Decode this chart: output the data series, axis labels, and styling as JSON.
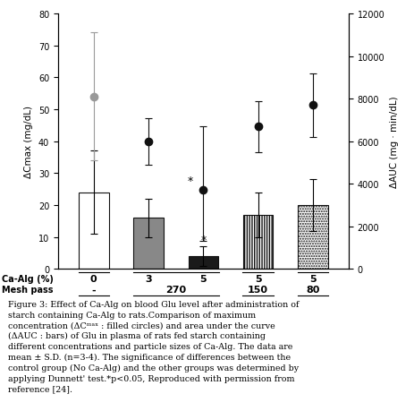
{
  "bar_positions": [
    1,
    2,
    3,
    4,
    5
  ],
  "bar_heights": [
    24,
    16,
    4,
    17,
    20
  ],
  "bar_errors": [
    13,
    6,
    3,
    7,
    8
  ],
  "bar_colors": [
    "white",
    "#888888",
    "#1a1a1a",
    "white",
    "white"
  ],
  "bar_patterns": [
    "",
    "",
    "",
    "||||||",
    "......"
  ],
  "dot_values": [
    8100,
    6000,
    3700,
    6700,
    7700
  ],
  "dot_errors_upper": [
    3000,
    1100,
    3000,
    1200,
    1500
  ],
  "dot_errors_lower": [
    3000,
    1100,
    2400,
    1200,
    1500
  ],
  "left_ylabel": "ΔCmax (mg/dL)",
  "right_ylabel": "ΔAUC (mg · min/dL)",
  "left_ylim": [
    0,
    80
  ],
  "right_ylim": [
    0,
    12000
  ],
  "left_yticks": [
    0,
    10,
    20,
    30,
    40,
    50,
    60,
    70,
    80
  ],
  "right_yticks": [
    0,
    2000,
    4000,
    6000,
    8000,
    10000,
    12000
  ],
  "ca_alg_labels": [
    "0",
    "3",
    "5",
    "5",
    "5"
  ],
  "mesh_pass_labels": [
    "-",
    "270",
    "",
    "150",
    "80"
  ],
  "background_color": "#ffffff",
  "dot_color": "#111111",
  "bar_edge_color": "#111111"
}
